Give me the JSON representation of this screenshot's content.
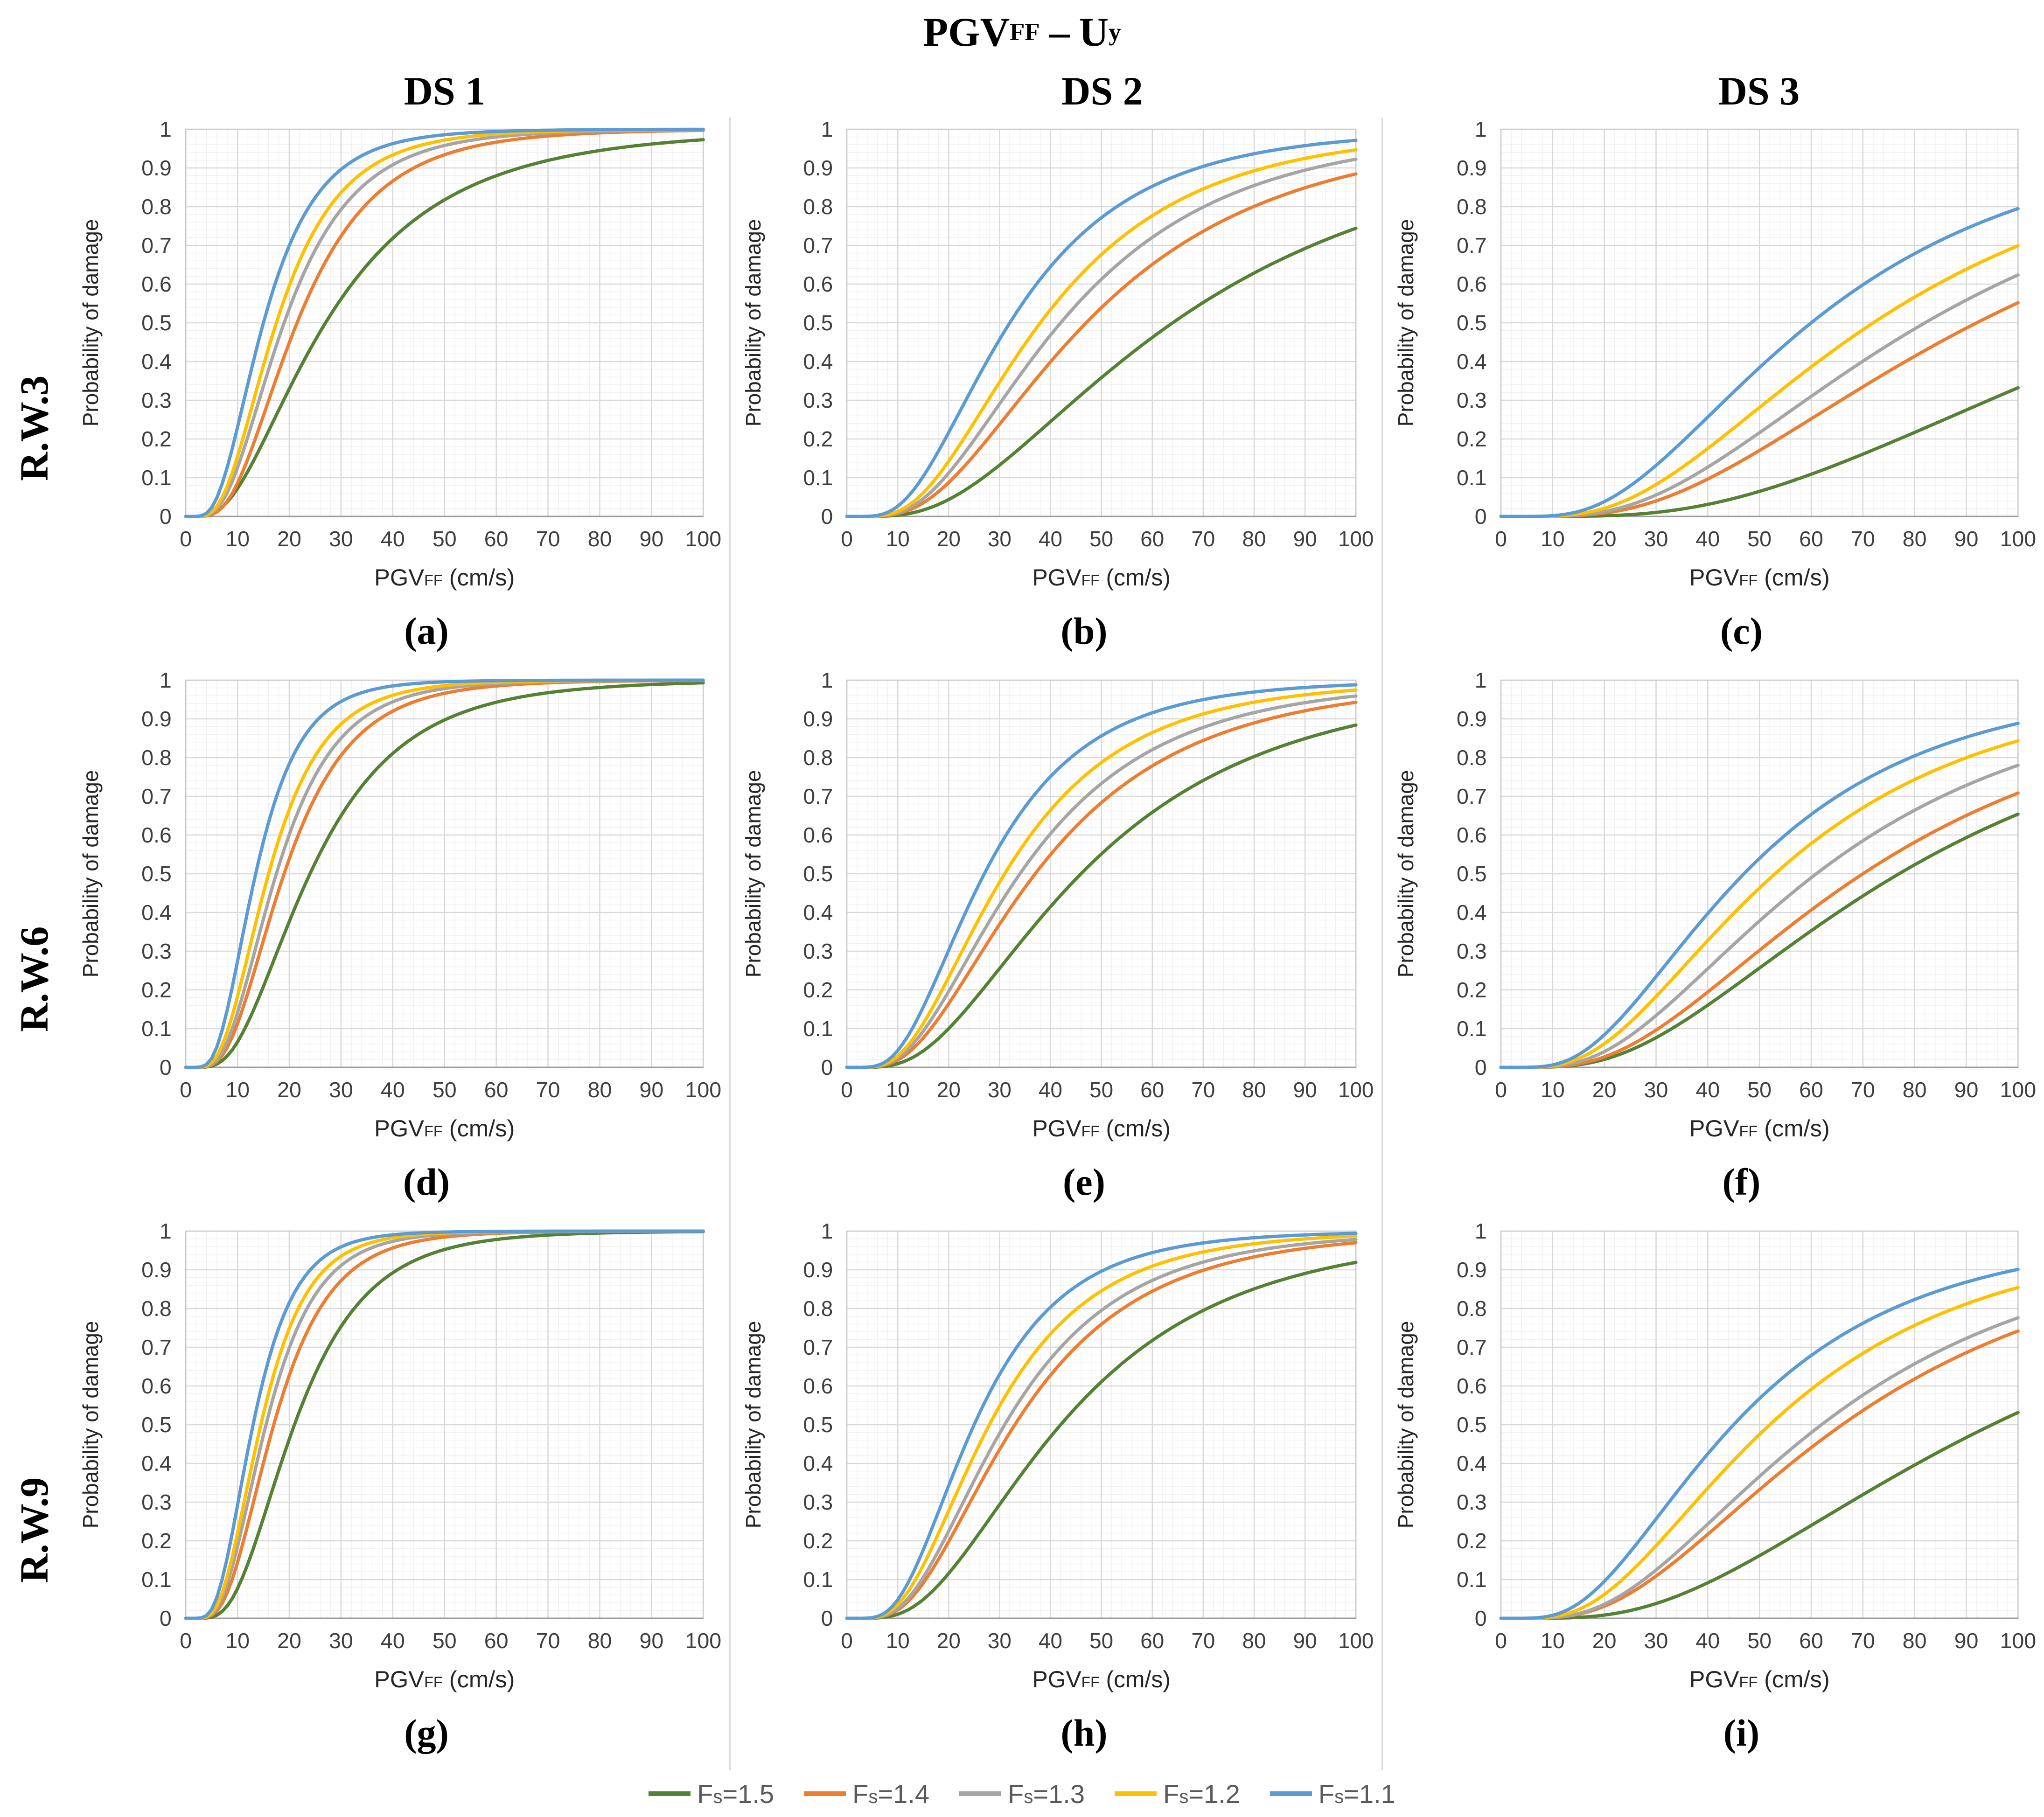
{
  "figure": {
    "title": {
      "main": "PGV",
      "main_sub": "FF",
      "sep": "–",
      "u": "U",
      "u_sub": "y"
    },
    "columns": [
      "DS 1",
      "DS 2",
      "DS 3"
    ],
    "rows": [
      "R.W.3",
      "R.W.6",
      "R.W.9"
    ]
  },
  "axis": {
    "y_label": "Probability of damage",
    "x_label": {
      "main": "PGV",
      "sub": "FF",
      "unit": " (cm/s)"
    },
    "x_ticks": [
      0,
      10,
      20,
      30,
      40,
      50,
      60,
      70,
      80,
      90,
      100
    ],
    "y_ticks": [
      0,
      0.1,
      0.2,
      0.3,
      0.4,
      0.5,
      0.6,
      0.7,
      0.8,
      0.9,
      1
    ],
    "x_min": 0,
    "x_max": 100,
    "y_min": 0,
    "y_max": 1,
    "grid": {
      "major_x_step": 10,
      "minor_x_step": 2,
      "major_y_step": 0.1,
      "minor_y_step": 0.02
    }
  },
  "legend": {
    "position": "bottom-center",
    "items": [
      {
        "label": "Fs=1.5",
        "label_main": "F",
        "label_sub": "s",
        "label_val": "=1.5",
        "color": "#548235"
      },
      {
        "label": "Fs=1.4",
        "label_main": "F",
        "label_sub": "s",
        "label_val": "=1.4",
        "color": "#ED7D31"
      },
      {
        "label": "Fs=1.3",
        "label_main": "F",
        "label_sub": "s",
        "label_val": "=1.3",
        "color": "#A5A5A5"
      },
      {
        "label": "Fs=1.2",
        "label_main": "F",
        "label_sub": "s",
        "label_val": "=1.2",
        "color": "#FFC000"
      },
      {
        "label": "Fs=1.1",
        "label_main": "F",
        "label_sub": "s",
        "label_val": "=1.1",
        "color": "#5B9BD5"
      }
    ]
  },
  "curve_model": "lognormal_cdf: P(x) = NormCDF( ln(x / median) / beta ); median = PGV at P=0.5 (cm/s), beta = lognormal dispersion; p_at_100 = probability read off chart at PGV = 100 cm/s",
  "chart_data": [
    {
      "id": "a",
      "caption": "(a)",
      "row_label": "R.W.3",
      "column_label": "DS 1",
      "type": "line",
      "xlabel": "PGVFF (cm/s)",
      "ylabel": "Probability of damage",
      "xlim": [
        0,
        100
      ],
      "ylim": [
        0,
        1
      ],
      "series": [
        {
          "name": "Fs=1.5",
          "color": "#548235",
          "median": 27.0,
          "beta": 0.68,
          "p_at_100": 0.97
        },
        {
          "name": "Fs=1.4",
          "color": "#ED7D31",
          "median": 21.5,
          "beta": 0.56,
          "p_at_100": 0.99
        },
        {
          "name": "Fs=1.3",
          "color": "#A5A5A5",
          "median": 19.0,
          "beta": 0.56,
          "p_at_100": 0.99
        },
        {
          "name": "Fs=1.2",
          "color": "#FFC000",
          "median": 17.5,
          "beta": 0.55,
          "p_at_100": 1.0
        },
        {
          "name": "Fs=1.1",
          "color": "#5B9BD5",
          "median": 15.0,
          "beta": 0.55,
          "p_at_100": 1.0
        }
      ]
    },
    {
      "id": "b",
      "caption": "(b)",
      "row_label": "R.W.3",
      "column_label": "DS 2",
      "type": "line",
      "xlabel": "PGVFF (cm/s)",
      "ylabel": "Probability of damage",
      "xlim": [
        0,
        100
      ],
      "ylim": [
        0,
        1
      ],
      "series": [
        {
          "name": "Fs=1.5",
          "color": "#548235",
          "median": 64.0,
          "beta": 0.68,
          "p_at_100": 0.74
        },
        {
          "name": "Fs=1.4",
          "color": "#ED7D31",
          "median": 47.0,
          "beta": 0.63,
          "p_at_100": 0.88
        },
        {
          "name": "Fs=1.3",
          "color": "#A5A5A5",
          "median": 42.0,
          "beta": 0.61,
          "p_at_100": 0.92
        },
        {
          "name": "Fs=1.2",
          "color": "#FFC000",
          "median": 38.0,
          "beta": 0.6,
          "p_at_100": 0.94
        },
        {
          "name": "Fs=1.1",
          "color": "#5B9BD5",
          "median": 32.0,
          "beta": 0.6,
          "p_at_100": 0.97
        }
      ]
    },
    {
      "id": "c",
      "caption": "(c)",
      "row_label": "R.W.3",
      "column_label": "DS 3",
      "type": "line",
      "xlabel": "PGVFF (cm/s)",
      "ylabel": "Probability of damage",
      "xlim": [
        0,
        100
      ],
      "ylim": [
        0,
        1
      ],
      "series": [
        {
          "name": "Fs=1.5",
          "color": "#548235",
          "median": 132.0,
          "beta": 0.64,
          "p_at_100": 0.33
        },
        {
          "name": "Fs=1.4",
          "color": "#ED7D31",
          "median": 92.0,
          "beta": 0.64,
          "p_at_100": 0.55
        },
        {
          "name": "Fs=1.3",
          "color": "#A5A5A5",
          "median": 82.0,
          "beta": 0.63,
          "p_at_100": 0.63
        },
        {
          "name": "Fs=1.2",
          "color": "#FFC000",
          "median": 72.0,
          "beta": 0.63,
          "p_at_100": 0.7
        },
        {
          "name": "Fs=1.1",
          "color": "#5B9BD5",
          "median": 60.0,
          "beta": 0.62,
          "p_at_100": 0.8
        }
      ]
    },
    {
      "id": "d",
      "caption": "(d)",
      "row_label": "R.W.6",
      "column_label": "DS 1",
      "type": "line",
      "xlabel": "PGVFF (cm/s)",
      "ylabel": "Probability of damage",
      "xlim": [
        0,
        100
      ],
      "ylim": [
        0,
        1
      ],
      "series": [
        {
          "name": "Fs=1.5",
          "color": "#548235",
          "median": 24.0,
          "beta": 0.58,
          "p_at_100": 0.99
        },
        {
          "name": "Fs=1.4",
          "color": "#ED7D31",
          "median": 19.0,
          "beta": 0.53,
          "p_at_100": 1.0
        },
        {
          "name": "Fs=1.3",
          "color": "#A5A5A5",
          "median": 17.5,
          "beta": 0.52,
          "p_at_100": 1.0
        },
        {
          "name": "Fs=1.2",
          "color": "#FFC000",
          "median": 16.0,
          "beta": 0.52,
          "p_at_100": 1.0
        },
        {
          "name": "Fs=1.1",
          "color": "#5B9BD5",
          "median": 13.5,
          "beta": 0.5,
          "p_at_100": 1.0
        }
      ]
    },
    {
      "id": "e",
      "caption": "(e)",
      "row_label": "R.W.6",
      "column_label": "DS 2",
      "type": "line",
      "xlabel": "PGVFF (cm/s)",
      "ylabel": "Probability of damage",
      "xlim": [
        0,
        100
      ],
      "ylim": [
        0,
        1
      ],
      "series": [
        {
          "name": "Fs=1.5",
          "color": "#548235",
          "median": 46.0,
          "beta": 0.65,
          "p_at_100": 0.89
        },
        {
          "name": "Fs=1.4",
          "color": "#ED7D31",
          "median": 37.0,
          "beta": 0.63,
          "p_at_100": 0.94
        },
        {
          "name": "Fs=1.3",
          "color": "#A5A5A5",
          "median": 34.0,
          "beta": 0.62,
          "p_at_100": 0.95
        },
        {
          "name": "Fs=1.2",
          "color": "#FFC000",
          "median": 31.0,
          "beta": 0.6,
          "p_at_100": 0.97
        },
        {
          "name": "Fs=1.1",
          "color": "#5B9BD5",
          "median": 27.0,
          "beta": 0.58,
          "p_at_100": 0.99
        }
      ]
    },
    {
      "id": "f",
      "caption": "(f)",
      "row_label": "R.W.6",
      "column_label": "DS 3",
      "type": "line",
      "xlabel": "PGVFF (cm/s)",
      "ylabel": "Probability of damage",
      "xlim": [
        0,
        100
      ],
      "ylim": [
        0,
        1
      ],
      "series": [
        {
          "name": "Fs=1.5",
          "color": "#548235",
          "median": 77.0,
          "beta": 0.66,
          "p_at_100": 0.64
        },
        {
          "name": "Fs=1.4",
          "color": "#ED7D31",
          "median": 70.0,
          "beta": 0.65,
          "p_at_100": 0.7
        },
        {
          "name": "Fs=1.3",
          "color": "#A5A5A5",
          "median": 61.0,
          "beta": 0.64,
          "p_at_100": 0.76
        },
        {
          "name": "Fs=1.2",
          "color": "#FFC000",
          "median": 53.0,
          "beta": 0.63,
          "p_at_100": 0.83
        },
        {
          "name": "Fs=1.1",
          "color": "#5B9BD5",
          "median": 47.0,
          "beta": 0.62,
          "p_at_100": 0.88
        }
      ]
    },
    {
      "id": "g",
      "caption": "(g)",
      "row_label": "R.W.9",
      "column_label": "DS 1",
      "type": "line",
      "xlabel": "PGVFF (cm/s)",
      "ylabel": "Probability of damage",
      "xlim": [
        0,
        100
      ],
      "ylim": [
        0,
        1
      ],
      "series": [
        {
          "name": "Fs=1.5",
          "color": "#548235",
          "median": 21.0,
          "beta": 0.52,
          "p_at_100": 1.0
        },
        {
          "name": "Fs=1.4",
          "color": "#ED7D31",
          "median": 17.0,
          "beta": 0.5,
          "p_at_100": 1.0
        },
        {
          "name": "Fs=1.3",
          "color": "#A5A5A5",
          "median": 15.5,
          "beta": 0.49,
          "p_at_100": 1.0
        },
        {
          "name": "Fs=1.2",
          "color": "#FFC000",
          "median": 14.5,
          "beta": 0.48,
          "p_at_100": 1.0
        },
        {
          "name": "Fs=1.1",
          "color": "#5B9BD5",
          "median": 13.0,
          "beta": 0.48,
          "p_at_100": 1.0
        }
      ]
    },
    {
      "id": "h",
      "caption": "(h)",
      "row_label": "R.W.9",
      "column_label": "DS 2",
      "type": "line",
      "xlabel": "PGVFF (cm/s)",
      "ylabel": "Probability of damage",
      "xlim": [
        0,
        100
      ],
      "ylim": [
        0,
        1
      ],
      "series": [
        {
          "name": "Fs=1.5",
          "color": "#548235",
          "median": 42.0,
          "beta": 0.62,
          "p_at_100": 0.9
        },
        {
          "name": "Fs=1.4",
          "color": "#ED7D31",
          "median": 33.0,
          "beta": 0.59,
          "p_at_100": 0.95
        },
        {
          "name": "Fs=1.3",
          "color": "#A5A5A5",
          "median": 31.0,
          "beta": 0.58,
          "p_at_100": 0.96
        },
        {
          "name": "Fs=1.2",
          "color": "#FFC000",
          "median": 28.0,
          "beta": 0.57,
          "p_at_100": 0.98
        },
        {
          "name": "Fs=1.1",
          "color": "#5B9BD5",
          "median": 25.0,
          "beta": 0.55,
          "p_at_100": 0.99
        }
      ]
    },
    {
      "id": "i",
      "caption": "(i)",
      "row_label": "R.W.9",
      "column_label": "DS 3",
      "type": "line",
      "xlabel": "PGVFF (cm/s)",
      "ylabel": "Probability of damage",
      "xlim": [
        0,
        100
      ],
      "ylim": [
        0,
        1
      ],
      "series": [
        {
          "name": "Fs=1.5",
          "color": "#548235",
          "median": 95.0,
          "beta": 0.65,
          "p_at_100": 0.53
        },
        {
          "name": "Fs=1.4",
          "color": "#ED7D31",
          "median": 66.0,
          "beta": 0.64,
          "p_at_100": 0.73
        },
        {
          "name": "Fs=1.3",
          "color": "#A5A5A5",
          "median": 62.0,
          "beta": 0.63,
          "p_at_100": 0.76
        },
        {
          "name": "Fs=1.2",
          "color": "#FFC000",
          "median": 52.0,
          "beta": 0.62,
          "p_at_100": 0.85
        },
        {
          "name": "Fs=1.1",
          "color": "#5B9BD5",
          "median": 45.0,
          "beta": 0.62,
          "p_at_100": 0.9
        }
      ]
    }
  ],
  "style": {
    "grid_major_color": "#d9d9d9",
    "grid_minor_color": "#f0f0f0",
    "plot_border_color": "#c9c9c9",
    "axis_line_color": "#9b9b9b",
    "tick_text_color": "#3f3f3f",
    "legend_text_color": "#595959"
  }
}
